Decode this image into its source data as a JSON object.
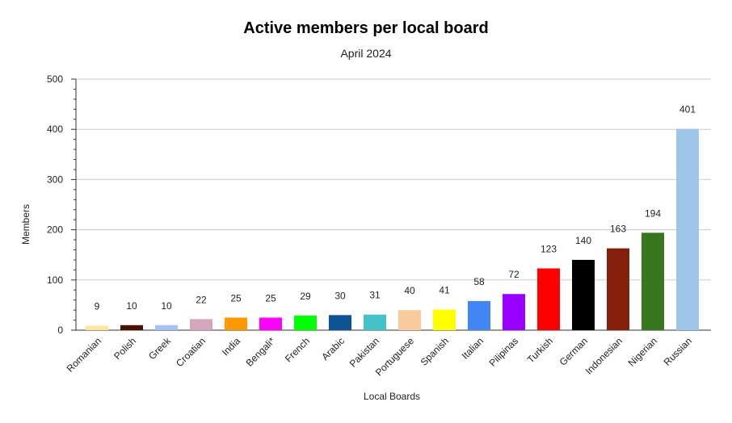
{
  "chart_data": {
    "type": "bar",
    "title": "Active members per local board",
    "subtitle": "April 2024",
    "xlabel": "Local Boards",
    "ylabel": "Members",
    "ylim": [
      0,
      500
    ],
    "yticks": [
      0,
      100,
      200,
      300,
      400,
      500
    ],
    "grid": true,
    "legend": "none",
    "categories": [
      "Romanian",
      "Polish",
      "Greek",
      "Croatian",
      "India",
      "Bengali*",
      "French",
      "Arabic",
      "Pakistan",
      "Portuguese",
      "Spanish",
      "Italian",
      "Pilipinas",
      "Turkish",
      "German",
      "Indonesian",
      "Nigerian",
      "Russian"
    ],
    "values": [
      9,
      10,
      10,
      22,
      25,
      25,
      29,
      30,
      31,
      40,
      41,
      58,
      72,
      123,
      140,
      163,
      194,
      401
    ],
    "colors": [
      "#ffe599",
      "#4a1000",
      "#a4c2f4",
      "#d5a6bd",
      "#ff9900",
      "#ff00ff",
      "#00ff00",
      "#0b5394",
      "#45c1c8",
      "#f9cb9c",
      "#ffff00",
      "#4285f4",
      "#9900ff",
      "#ff0000",
      "#000000",
      "#85200c",
      "#38761d",
      "#9fc5e8"
    ]
  }
}
